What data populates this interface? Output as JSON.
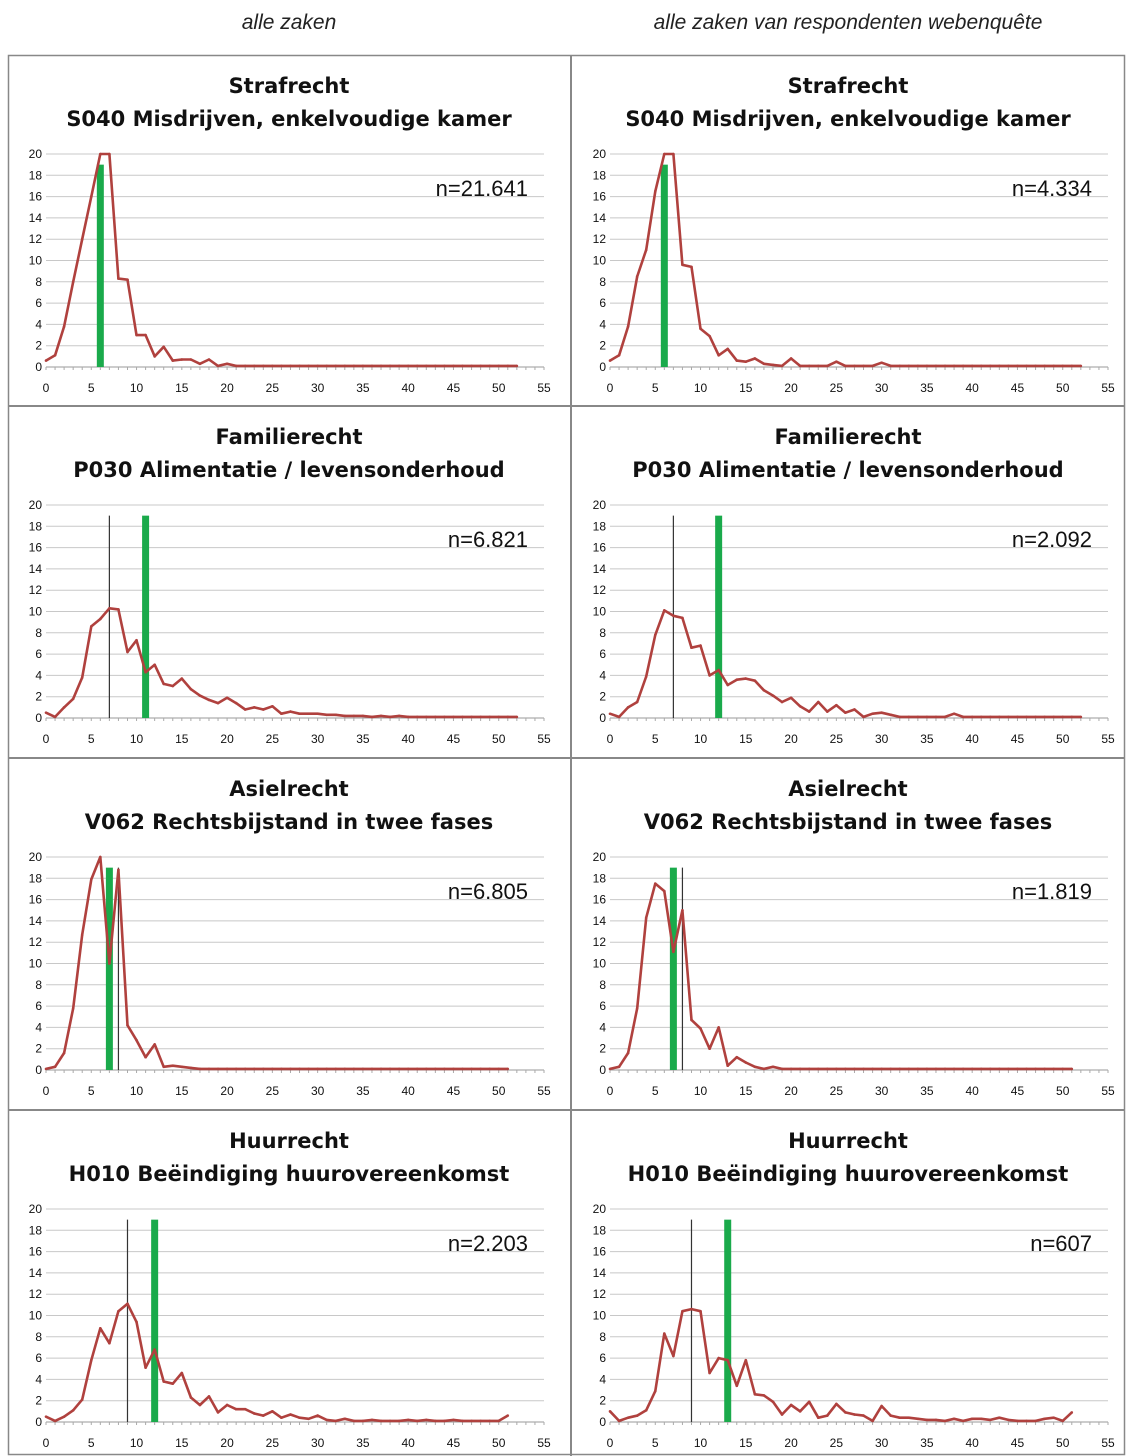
{
  "headers": {
    "left": "alle zaken",
    "right": "alle zaken van respondenten webenquête"
  },
  "colors": {
    "series": "#b0413e",
    "green_marker": "#1aaa4b",
    "thin_marker": "#333333",
    "grid": "#c8c8c8",
    "border": "#888888"
  },
  "axes": {
    "x_ticks": [
      "0",
      "5",
      "10",
      "15",
      "20",
      "25",
      "30",
      "35",
      "40",
      "45",
      "50",
      "55"
    ],
    "y_ticks": [
      "0",
      "2",
      "4",
      "6",
      "8",
      "10",
      "12",
      "14",
      "16",
      "18",
      "20"
    ],
    "xlim": [
      0,
      55
    ],
    "ylim": [
      0,
      20
    ],
    "grid": "horizontal"
  },
  "chart_data": [
    {
      "type": "line",
      "title": "Strafrecht",
      "subtitle": "S040 Misdrijven, enkelvoudige kamer",
      "n_label": "n=21.641",
      "thin_marker_x": null,
      "green_marker_x": 6,
      "green_marker_height": 19,
      "x": [
        0,
        1,
        2,
        3,
        4,
        5,
        6,
        7,
        8,
        9,
        10,
        11,
        12,
        13,
        14,
        15,
        16,
        17,
        18,
        19,
        20,
        21,
        22,
        23,
        24,
        25,
        26,
        27,
        28,
        29,
        30,
        31,
        32,
        33,
        34,
        35,
        36,
        37,
        38,
        39,
        40,
        41,
        42,
        43,
        44,
        45,
        46,
        47,
        48,
        49,
        50,
        51,
        52
      ],
      "values": [
        0.6,
        1.1,
        3.8,
        8,
        12,
        16,
        20,
        20,
        8.3,
        8.2,
        3,
        3,
        1,
        1.9,
        0.6,
        0.7,
        0.7,
        0.3,
        0.7,
        0.1,
        0.3,
        0.1,
        0.1,
        0.1,
        0.1,
        0.1,
        0.1,
        0.1,
        0.1,
        0.1,
        0.1,
        0.1,
        0.1,
        0.1,
        0.1,
        0.1,
        0.1,
        0.1,
        0.1,
        0.1,
        0.1,
        0.1,
        0.1,
        0.1,
        0.1,
        0.1,
        0.1,
        0.1,
        0.1,
        0.1,
        0.1,
        0.1,
        0.1
      ]
    },
    {
      "type": "line",
      "title": "Strafrecht",
      "subtitle": "S040 Misdrijven, enkelvoudige kamer",
      "n_label": "n=4.334",
      "thin_marker_x": null,
      "green_marker_x": 6,
      "green_marker_height": 19,
      "x": [
        0,
        1,
        2,
        3,
        4,
        5,
        6,
        7,
        8,
        9,
        10,
        11,
        12,
        13,
        14,
        15,
        16,
        17,
        18,
        19,
        20,
        21,
        22,
        23,
        24,
        25,
        26,
        27,
        28,
        29,
        30,
        31,
        32,
        33,
        34,
        35,
        36,
        37,
        38,
        39,
        40,
        41,
        42,
        43,
        44,
        45,
        46,
        47,
        48,
        49,
        50,
        51,
        52
      ],
      "values": [
        0.6,
        1.1,
        3.8,
        8.5,
        11,
        16.5,
        20,
        20,
        9.6,
        9.4,
        3.6,
        2.9,
        1.1,
        1.7,
        0.6,
        0.5,
        0.8,
        0.3,
        0.2,
        0.1,
        0.8,
        0.1,
        0.1,
        0.1,
        0.1,
        0.5,
        0.1,
        0.1,
        0.1,
        0.1,
        0.4,
        0.1,
        0.1,
        0.1,
        0.1,
        0.1,
        0.1,
        0.1,
        0.1,
        0.1,
        0.1,
        0.1,
        0.1,
        0.1,
        0.1,
        0.1,
        0.1,
        0.1,
        0.1,
        0.1,
        0.1,
        0.1,
        0.1
      ]
    },
    {
      "type": "line",
      "title": "Familierecht",
      "subtitle": "P030 Alimentatie / levensonderhoud",
      "n_label": "n=6.821",
      "thin_marker_x": 7,
      "green_marker_x": 11,
      "green_marker_height": 19,
      "x": [
        0,
        1,
        2,
        3,
        4,
        5,
        6,
        7,
        8,
        9,
        10,
        11,
        12,
        13,
        14,
        15,
        16,
        17,
        18,
        19,
        20,
        21,
        22,
        23,
        24,
        25,
        26,
        27,
        28,
        29,
        30,
        31,
        32,
        33,
        34,
        35,
        36,
        37,
        38,
        39,
        40,
        41,
        42,
        43,
        44,
        45,
        46,
        47,
        48,
        49,
        50,
        51,
        52
      ],
      "values": [
        0.5,
        0.1,
        1,
        1.8,
        3.8,
        8.6,
        9.3,
        10.3,
        10.2,
        6.2,
        7.3,
        4.3,
        5,
        3.2,
        3,
        3.7,
        2.7,
        2.1,
        1.7,
        1.4,
        1.9,
        1.4,
        0.8,
        1,
        0.8,
        1.1,
        0.4,
        0.6,
        0.4,
        0.4,
        0.4,
        0.3,
        0.3,
        0.2,
        0.2,
        0.2,
        0.1,
        0.2,
        0.1,
        0.2,
        0.1,
        0.1,
        0.1,
        0.1,
        0.1,
        0.1,
        0.1,
        0.1,
        0.1,
        0.1,
        0.1,
        0.1,
        0.1
      ]
    },
    {
      "type": "line",
      "title": "Familierecht",
      "subtitle": "P030 Alimentatie / levensonderhoud",
      "n_label": "n=2.092",
      "thin_marker_x": 7,
      "green_marker_x": 12,
      "green_marker_height": 19,
      "x": [
        0,
        1,
        2,
        3,
        4,
        5,
        6,
        7,
        8,
        9,
        10,
        11,
        12,
        13,
        14,
        15,
        16,
        17,
        18,
        19,
        20,
        21,
        22,
        23,
        24,
        25,
        26,
        27,
        28,
        29,
        30,
        31,
        32,
        33,
        34,
        35,
        36,
        37,
        38,
        39,
        40,
        41,
        42,
        43,
        44,
        45,
        46,
        47,
        48,
        49,
        50,
        51,
        52
      ],
      "values": [
        0.4,
        0.1,
        1,
        1.5,
        3.9,
        7.8,
        10.1,
        9.6,
        9.4,
        6.6,
        6.8,
        4,
        4.5,
        3.1,
        3.6,
        3.7,
        3.5,
        2.6,
        2.1,
        1.5,
        1.9,
        1.1,
        0.6,
        1.5,
        0.6,
        1.2,
        0.5,
        0.8,
        0.1,
        0.4,
        0.5,
        0.3,
        0.1,
        0.1,
        0.1,
        0.1,
        0.1,
        0.1,
        0.4,
        0.1,
        0.1,
        0.1,
        0.1,
        0.1,
        0.1,
        0.1,
        0.1,
        0.1,
        0.1,
        0.1,
        0.1,
        0.1,
        0.1
      ]
    },
    {
      "type": "line",
      "title": "Asielrecht",
      "subtitle": "V062 Rechtsbijstand in twee fases",
      "n_label": "n=6.805",
      "thin_marker_x": 8,
      "green_marker_x": 7,
      "green_marker_height": 19,
      "x": [
        0,
        1,
        2,
        3,
        4,
        5,
        6,
        7,
        8,
        9,
        10,
        11,
        12,
        13,
        14,
        15,
        16,
        17,
        18,
        19,
        20,
        21,
        22,
        23,
        24,
        25,
        26,
        27,
        28,
        29,
        30,
        31,
        32,
        33,
        34,
        35,
        36,
        37,
        38,
        39,
        40,
        41,
        42,
        43,
        44,
        45,
        46,
        47,
        48,
        49,
        50,
        51
      ],
      "values": [
        0.1,
        0.3,
        1.6,
        5.8,
        12.7,
        17.9,
        20,
        10,
        18.8,
        4.2,
        2.8,
        1.2,
        2.4,
        0.3,
        0.4,
        0.3,
        0.2,
        0.1,
        0.1,
        0.1,
        0.1,
        0.1,
        0.1,
        0.1,
        0.1,
        0.1,
        0.1,
        0.1,
        0.1,
        0.1,
        0.1,
        0.1,
        0.1,
        0.1,
        0.1,
        0.1,
        0.1,
        0.1,
        0.1,
        0.1,
        0.1,
        0.1,
        0.1,
        0.1,
        0.1,
        0.1,
        0.1,
        0.1,
        0.1,
        0.1,
        0.1,
        0.1
      ]
    },
    {
      "type": "line",
      "title": "Asielrecht",
      "subtitle": "V062 Rechtsbijstand in twee fases",
      "n_label": "n=1.819",
      "thin_marker_x": 8,
      "green_marker_x": 7,
      "green_marker_height": 19,
      "x": [
        0,
        1,
        2,
        3,
        4,
        5,
        6,
        7,
        8,
        9,
        10,
        11,
        12,
        13,
        14,
        15,
        16,
        17,
        18,
        19,
        20,
        21,
        22,
        23,
        24,
        25,
        26,
        27,
        28,
        29,
        30,
        31,
        32,
        33,
        34,
        35,
        36,
        37,
        38,
        39,
        40,
        41,
        42,
        43,
        44,
        45,
        46,
        47,
        48,
        49,
        50,
        51
      ],
      "values": [
        0.1,
        0.3,
        1.6,
        5.8,
        14.3,
        17.5,
        16.8,
        11.1,
        15,
        4.7,
        3.9,
        2,
        4,
        0.4,
        1.2,
        0.7,
        0.3,
        0.1,
        0.3,
        0.1,
        0.1,
        0.1,
        0.1,
        0.1,
        0.1,
        0.1,
        0.1,
        0.1,
        0.1,
        0.1,
        0.1,
        0.1,
        0.1,
        0.1,
        0.1,
        0.1,
        0.1,
        0.1,
        0.1,
        0.1,
        0.1,
        0.1,
        0.1,
        0.1,
        0.1,
        0.1,
        0.1,
        0.1,
        0.1,
        0.1,
        0.1,
        0.1
      ]
    },
    {
      "type": "line",
      "title": "Huurrecht",
      "subtitle": "H010 Beëindiging huurovereenkomst",
      "n_label": "n=2.203",
      "thin_marker_x": 9,
      "green_marker_x": 12,
      "green_marker_height": 19,
      "x": [
        0,
        1,
        2,
        3,
        4,
        5,
        6,
        7,
        8,
        9,
        10,
        11,
        12,
        13,
        14,
        15,
        16,
        17,
        18,
        19,
        20,
        21,
        22,
        23,
        24,
        25,
        26,
        27,
        28,
        29,
        30,
        31,
        32,
        33,
        34,
        35,
        36,
        37,
        38,
        39,
        40,
        41,
        42,
        43,
        44,
        45,
        46,
        47,
        48,
        49,
        50,
        51
      ],
      "values": [
        0.5,
        0.1,
        0.5,
        1.1,
        2.1,
        5.8,
        8.8,
        7.4,
        10.4,
        11.1,
        9.4,
        5.1,
        6.8,
        3.8,
        3.6,
        4.6,
        2.3,
        1.6,
        2.4,
        0.9,
        1.6,
        1.2,
        1.2,
        0.8,
        0.6,
        1,
        0.4,
        0.7,
        0.4,
        0.3,
        0.6,
        0.2,
        0.1,
        0.3,
        0.1,
        0.1,
        0.2,
        0.1,
        0.1,
        0.1,
        0.2,
        0.1,
        0.2,
        0.1,
        0.1,
        0.2,
        0.1,
        0.1,
        0.1,
        0.1,
        0.1,
        0.6
      ]
    },
    {
      "type": "line",
      "title": "Huurrecht",
      "subtitle": "H010 Beëindiging huurovereenkomst",
      "n_label": "n=607",
      "thin_marker_x": 9,
      "green_marker_x": 13,
      "green_marker_height": 19,
      "x": [
        0,
        1,
        2,
        3,
        4,
        5,
        6,
        7,
        8,
        9,
        10,
        11,
        12,
        13,
        14,
        15,
        16,
        17,
        18,
        19,
        20,
        21,
        22,
        23,
        24,
        25,
        26,
        27,
        28,
        29,
        30,
        31,
        32,
        33,
        34,
        35,
        36,
        37,
        38,
        39,
        40,
        41,
        42,
        43,
        44,
        45,
        46,
        47,
        48,
        49,
        50,
        51
      ],
      "values": [
        1,
        0.1,
        0.4,
        0.6,
        1.1,
        2.9,
        8.3,
        6.2,
        10.4,
        10.6,
        10.4,
        4.6,
        6,
        5.8,
        3.4,
        5.8,
        2.6,
        2.5,
        1.9,
        0.7,
        1.6,
        1,
        1.9,
        0.4,
        0.6,
        1.7,
        0.9,
        0.7,
        0.6,
        0.1,
        1.5,
        0.6,
        0.4,
        0.4,
        0.3,
        0.2,
        0.2,
        0.1,
        0.3,
        0.1,
        0.3,
        0.3,
        0.2,
        0.4,
        0.2,
        0.1,
        0.1,
        0.1,
        0.3,
        0.4,
        0.1,
        0.9
      ]
    }
  ]
}
